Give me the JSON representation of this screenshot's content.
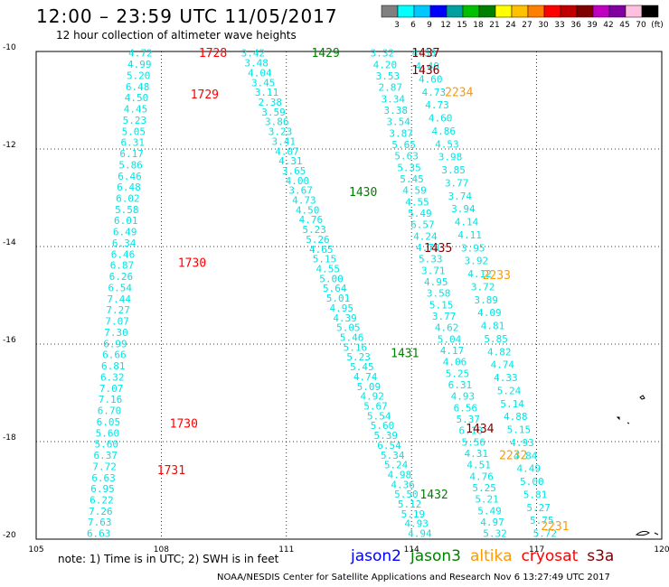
{
  "title": "12:00 – 23:59 UTC 11/05/2017",
  "subtitle": "12 hour collection of altimeter wave heights",
  "colorbar": {
    "colors": [
      "#808080",
      "#00ffff",
      "#00c8ff",
      "#0000ff",
      "#00a0a0",
      "#00c000",
      "#008000",
      "#ffff00",
      "#ffc000",
      "#ff8000",
      "#ff0000",
      "#c00000",
      "#800000",
      "#c000c0",
      "#8000a0",
      "#ffc0e0",
      "#000000"
    ],
    "labels": [
      "3",
      "6",
      "9",
      "12",
      "15",
      "18",
      "21",
      "24",
      "27",
      "30",
      "33",
      "36",
      "39",
      "42",
      "45",
      "70",
      "(ft)"
    ]
  },
  "map": {
    "lon_ticks": [
      "105",
      "108",
      "111",
      "114",
      "117",
      "120"
    ],
    "lat_ticks": [
      "-10",
      "-12",
      "-14",
      "-16",
      "-18",
      "-20"
    ]
  },
  "chart_data": {
    "type": "scatter",
    "x_range": [
      105,
      120
    ],
    "y_range": [
      -20,
      -10
    ],
    "tracks": [
      {
        "name": "track_1728_1731",
        "color": "#00e5e5",
        "lon": [
          107.5,
          106.5
        ],
        "lat": [
          -10.05,
          -19.9
        ],
        "values": [
          "4.72",
          "4.99",
          "5.20",
          "6.48",
          "4.50",
          "4.45",
          "5.23",
          "5.05",
          "6.31",
          "6.17",
          "5.86",
          "6.46",
          "6.48",
          "6.02",
          "5.58",
          "6.01",
          "6.49",
          "6.34",
          "6.46",
          "6.87",
          "6.26",
          "6.54",
          "7.44",
          "7.27",
          "7.07",
          "7.30",
          "6.99",
          "6.66",
          "6.81",
          "6.32",
          "7.07",
          "7.16",
          "6.70",
          "6.05",
          "5.60",
          "5.60",
          "6.37",
          "7.72",
          "6.63",
          "6.95",
          "6.22",
          "7.26",
          "7.63",
          "6.63"
        ]
      },
      {
        "name": "track_1429_1432",
        "color": "#00e5e5",
        "lon": [
          110.2,
          114.2
        ],
        "lat": [
          -10.05,
          -19.9
        ],
        "values": [
          "3.42",
          "3.48",
          "4.04",
          "3.45",
          "3.11",
          "2.38",
          "3.59",
          "3.86",
          "3.23",
          "3.41",
          "4.07",
          "4.31",
          "3.65",
          "4.00",
          "3.67",
          "4.73",
          "4.50",
          "4.76",
          "5.23",
          "5.26",
          "4.65",
          "5.15",
          "4.55",
          "5.00",
          "5.64",
          "5.01",
          "4.95",
          "4.39",
          "5.05",
          "5.46",
          "5.16",
          "5.23",
          "5.45",
          "4.74",
          "5.09",
          "4.92",
          "5.67",
          "5.54",
          "5.60",
          "5.39",
          "6.54",
          "5.34",
          "5.24",
          "4.98",
          "4.36",
          "5.50",
          "5.12",
          "5.19",
          "4.93",
          "4.94"
        ]
      },
      {
        "name": "track_1434_1437",
        "color": "#00e5e5",
        "lon": [
          113.3,
          116.0
        ],
        "lat": [
          -10.05,
          -19.9
        ],
        "values": [
          "3.32",
          "4.20",
          "3.53",
          "2.87",
          "3.34",
          "3.38",
          "3.54",
          "3.87",
          "5.65",
          "5.63",
          "5.35",
          "5.45",
          "4.59",
          "4.55",
          "5.49",
          "6.57",
          "4.24",
          "4.73",
          "5.33",
          "3.71",
          "4.95",
          "3.58",
          "5.15",
          "3.77",
          "4.62",
          "5.04",
          "4.17",
          "4.06",
          "5.25",
          "6.31",
          "4.93",
          "6.56",
          "5.37",
          "6.18",
          "5.56",
          "4.31",
          "4.51",
          "4.76",
          "5.25",
          "5.21",
          "5.49",
          "4.97",
          "5.32"
        ]
      },
      {
        "name": "track_2231_2234",
        "color": "#00e5e5",
        "lon": [
          114.3,
          117.2
        ],
        "lat": [
          -10.05,
          -19.9
        ],
        "values": [
          "4.38",
          "4.40",
          "4.60",
          "4.73",
          "4.73",
          "4.60",
          "4.86",
          "4.53",
          "3.98",
          "3.85",
          "3.77",
          "3.74",
          "3.94",
          "4.14",
          "4.11",
          "3.95",
          "3.92",
          "4.12",
          "3.72",
          "3.89",
          "4.09",
          "4.81",
          "5.85",
          "4.82",
          "4.74",
          "4.33",
          "5.24",
          "5.14",
          "4.88",
          "5.15",
          "4.93",
          "4.84",
          "4.49",
          "5.00",
          "5.81",
          "5.27",
          "5.75",
          "5.72"
        ]
      }
    ],
    "pass_labels": [
      {
        "text": "1728",
        "mission": "cryosat",
        "color": "#ff0000",
        "lon": 108.9,
        "lat": -10.05
      },
      {
        "text": "1729",
        "mission": "cryosat",
        "color": "#ff0000",
        "lon": 108.7,
        "lat": -10.9
      },
      {
        "text": "1730",
        "mission": "cryosat",
        "color": "#ff0000",
        "lon": 108.4,
        "lat": -14.35
      },
      {
        "text": "1730",
        "mission": "cryosat",
        "color": "#ff0000",
        "lon": 108.2,
        "lat": -17.65
      },
      {
        "text": "1731",
        "mission": "cryosat",
        "color": "#ff0000",
        "lon": 107.9,
        "lat": -18.6
      },
      {
        "text": "1429",
        "mission": "jason3",
        "color": "#008000",
        "lon": 111.6,
        "lat": -10.05
      },
      {
        "text": "1430",
        "mission": "jason3",
        "color": "#008000",
        "lon": 112.5,
        "lat": -12.9
      },
      {
        "text": "1431",
        "mission": "jason3",
        "color": "#008000",
        "lon": 113.5,
        "lat": -16.2
      },
      {
        "text": "1432",
        "mission": "jason3",
        "color": "#008000",
        "lon": 114.2,
        "lat": -19.1
      },
      {
        "text": "1437",
        "mission": "s3a",
        "color": "#800000",
        "lon": 114.0,
        "lat": -10.05
      },
      {
        "text": "1436",
        "mission": "s3a",
        "color": "#800000",
        "lon": 114.0,
        "lat": -10.4
      },
      {
        "text": "1435",
        "mission": "s3a",
        "color": "#800000",
        "lon": 114.3,
        "lat": -14.05
      },
      {
        "text": "1434",
        "mission": "s3a",
        "color": "#800000",
        "lon": 115.3,
        "lat": -17.75
      },
      {
        "text": "2234",
        "mission": "altika",
        "color": "#ff9900",
        "lon": 114.8,
        "lat": -10.85
      },
      {
        "text": "2233",
        "mission": "altika",
        "color": "#ff9900",
        "lon": 115.7,
        "lat": -14.6
      },
      {
        "text": "2232",
        "mission": "altika",
        "color": "#ff9900",
        "lon": 116.1,
        "lat": -18.3
      },
      {
        "text": "2231",
        "mission": "altika",
        "color": "#ff9900",
        "lon": 117.1,
        "lat": -19.75
      }
    ]
  },
  "note": "note:  1) Time is in UTC;  2) SWH is in feet",
  "missions": [
    {
      "label": "jason2",
      "color": "#0000ff"
    },
    {
      "label": "jason3",
      "color": "#008000"
    },
    {
      "label": "altika",
      "color": "#ff9900"
    },
    {
      "label": "cryosat",
      "color": "#ff0000"
    },
    {
      "label": "s3a",
      "color": "#800000"
    }
  ],
  "credit": "NOAA/NESDIS Center for Satellite Applications and Research     Nov  6 13:27:49 UTC 2017"
}
